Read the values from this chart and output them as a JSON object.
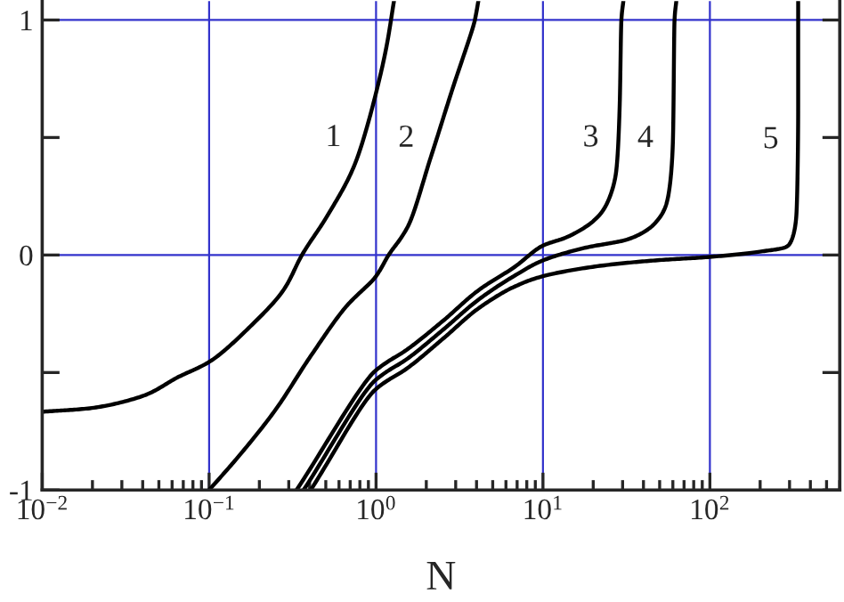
{
  "chart_data": {
    "type": "line",
    "xlabel": "N",
    "log": "x",
    "xlim": [
      0.01,
      600
    ],
    "ylim": [
      -1,
      1.08
    ],
    "xticks": [
      {
        "value": 0.01,
        "label": "10$^{−2}$"
      },
      {
        "value": 0.1,
        "label": "10$^{−1}$"
      },
      {
        "value": 1,
        "label": "10$^{0}$"
      },
      {
        "value": 10,
        "label": "10$^{1}$"
      },
      {
        "value": 100,
        "label": "10$^{2}$"
      }
    ],
    "yticks": [
      -1,
      {
        "value": -0.5,
        "label": null
      },
      0,
      {
        "value": 0.5,
        "label": null
      },
      1
    ],
    "grid": true,
    "marker": "none",
    "line_style": "solid",
    "series": [
      {
        "name": "1",
        "color": "#000000",
        "x": [
          0.01,
          0.0193,
          0.04,
          0.065,
          0.1,
          0.173,
          0.282,
          0.36,
          0.518,
          0.746,
          1,
          1.16,
          1.28
        ],
        "values": [
          -0.667,
          -0.652,
          -0.6,
          -0.52,
          -0.455,
          -0.31,
          -0.144,
          0,
          0.174,
          0.386,
          0.69,
          0.894,
          1.08
        ]
      },
      {
        "name": "2",
        "color": "#000000",
        "x": [
          0.1,
          0.153,
          0.249,
          0.406,
          0.661,
          1,
          1.19,
          1.55,
          2.13,
          2.85,
          3.91,
          4.1
        ],
        "values": [
          -1,
          -0.85,
          -0.66,
          -0.43,
          -0.22,
          -0.09,
          0,
          0.121,
          0.417,
          0.7,
          1.0,
          1.08
        ]
      },
      {
        "name": "3",
        "color": "#000000",
        "x": [
          0.334,
          1,
          1.55,
          2.52,
          4.11,
          6.69,
          10,
          13.9,
          20.0,
          23.8,
          27.5,
          28.8,
          29.5,
          30.3
        ],
        "values": [
          -1,
          -0.49,
          -0.4,
          -0.28,
          -0.15,
          -0.053,
          0.04,
          0.076,
          0.144,
          0.21,
          0.36,
          0.63,
          1.0,
          1.08
        ]
      },
      {
        "name": "4",
        "color": "#000000",
        "x": [
          0.368,
          1,
          1.55,
          2.52,
          4.11,
          6.69,
          10,
          17.7,
          32.6,
          47,
          55.7,
          60,
          61.4,
          62.9
        ],
        "values": [
          -1,
          -0.53,
          -0.44,
          -0.318,
          -0.19,
          -0.09,
          -0.023,
          0.03,
          0.068,
          0.136,
          0.235,
          0.477,
          1.0,
          1.08
        ]
      },
      {
        "name": "5",
        "color": "#000000",
        "x": [
          0.406,
          1,
          1.55,
          2.52,
          4.11,
          6.69,
          10,
          22.6,
          47,
          100,
          203,
          292,
          330,
          338,
          338
        ],
        "values": [
          -1,
          -0.57,
          -0.48,
          -0.356,
          -0.227,
          -0.136,
          -0.09,
          -0.045,
          -0.023,
          -0.008,
          0.015,
          0.038,
          0.174,
          0.63,
          1.08
        ]
      }
    ]
  }
}
